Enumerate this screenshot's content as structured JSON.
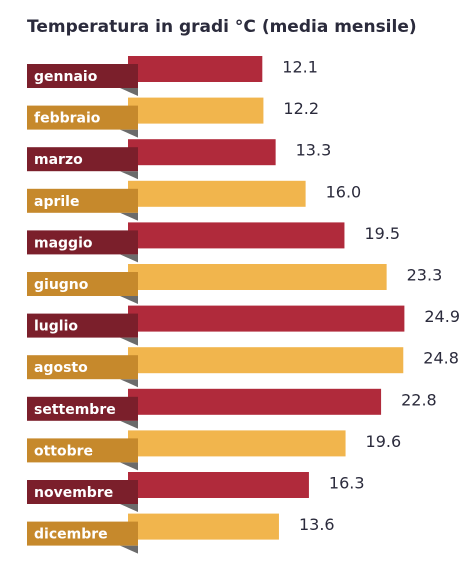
{
  "chart_data": {
    "type": "bar",
    "orientation": "horizontal",
    "title": "Temperatura in gradi °C (media mensile)",
    "categories": [
      "gennaio",
      "febbraio",
      "marzo",
      "aprile",
      "maggio",
      "giugno",
      "luglio",
      "agosto",
      "settembre",
      "ottobre",
      "novembre",
      "dicembre"
    ],
    "values": [
      12.1,
      12.2,
      13.3,
      16.0,
      19.5,
      23.3,
      24.9,
      24.8,
      22.8,
      19.6,
      16.3,
      13.6
    ],
    "value_labels": [
      "12.1",
      "12.2",
      "13.3",
      "16.0",
      "19.5",
      "23.3",
      "24.9",
      "24.8",
      "22.8",
      "19.6",
      "16.3",
      "13.6"
    ],
    "colors": [
      "#b02a3b",
      "#f1b54d",
      "#b02a3b",
      "#f1b54d",
      "#b02a3b",
      "#f1b54d",
      "#b02a3b",
      "#f1b54d",
      "#b02a3b",
      "#f1b54d",
      "#b02a3b",
      "#f1b54d"
    ],
    "label_colors": [
      "#7b1f2b",
      "#c6892c",
      "#7b1f2b",
      "#c6892c",
      "#7b1f2b",
      "#c6892c",
      "#7b1f2b",
      "#c6892c",
      "#7b1f2b",
      "#c6892c",
      "#7b1f2b",
      "#c6892c"
    ]
  }
}
